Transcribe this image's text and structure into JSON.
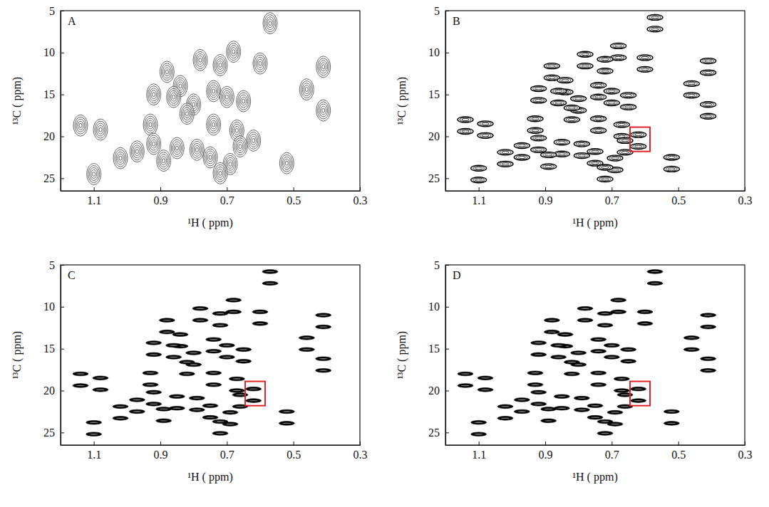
{
  "chart_data": [
    {
      "type": "scatter",
      "title": "A",
      "marker": "blob",
      "color": "#222222",
      "x_label": "¹H ( ppm)",
      "y_label": "¹³C ( ppm)",
      "xlim": [
        1.2,
        0.3
      ],
      "xticks": [
        1.1,
        0.9,
        0.7,
        0.5,
        0.3
      ],
      "ylim": [
        5,
        26.5
      ],
      "yticks": [
        5,
        10,
        15,
        20,
        25
      ],
      "x": [
        0.57,
        0.6,
        0.41,
        0.41,
        0.46,
        0.52,
        0.68,
        0.78,
        0.72,
        0.88,
        0.84,
        0.92,
        0.86,
        0.8,
        0.74,
        0.7,
        0.65,
        0.82,
        0.93,
        1.14,
        1.08,
        0.74,
        0.67,
        0.62,
        0.92,
        0.85,
        0.79,
        0.97,
        1.02,
        0.75,
        0.69,
        0.72,
        1.1,
        0.66,
        0.89
      ],
      "values": [
        6.5,
        11.3,
        11.7,
        16.9,
        14.4,
        23.2,
        9.9,
        10.9,
        11.5,
        12.3,
        14.0,
        15.0,
        15.3,
        16.2,
        14.6,
        15.3,
        15.8,
        17.3,
        18.6,
        18.7,
        19.2,
        18.6,
        19.3,
        20.5,
        20.9,
        21.4,
        21.6,
        21.8,
        22.6,
        22.5,
        23.3,
        24.4,
        24.5,
        21.2,
        22.9
      ]
    },
    {
      "type": "scatter",
      "title": "B",
      "marker": "contour",
      "color": "#000000",
      "x_label": "¹H ( ppm)",
      "y_label": "¹³C ( ppm)",
      "xlim": [
        1.2,
        0.3
      ],
      "xticks": [
        1.1,
        0.9,
        0.7,
        0.5,
        0.3
      ],
      "ylim": [
        5,
        26.5
      ],
      "yticks": [
        5,
        10,
        15,
        20,
        25
      ],
      "box": {
        "x": [
          0.645,
          0.585
        ],
        "y": [
          18.9,
          21.8
        ],
        "color": "#e0242a"
      },
      "x": [
        0.57,
        0.57,
        0.6,
        0.6,
        0.41,
        0.41,
        0.41,
        0.41,
        0.46,
        0.46,
        0.52,
        0.52,
        0.68,
        0.68,
        0.78,
        0.78,
        0.72,
        0.72,
        0.88,
        0.88,
        0.84,
        0.84,
        0.92,
        0.92,
        0.86,
        0.86,
        0.8,
        0.8,
        0.74,
        0.74,
        0.7,
        0.7,
        0.65,
        0.65,
        0.82,
        0.82,
        0.93,
        0.93,
        1.14,
        1.14,
        1.08,
        1.08,
        0.74,
        0.74,
        0.67,
        0.67,
        0.62,
        0.62,
        0.92,
        0.92,
        0.85,
        0.85,
        0.79,
        0.79,
        0.97,
        0.97,
        1.02,
        1.02,
        0.75,
        0.75,
        0.69,
        0.69,
        0.72,
        0.72,
        1.1,
        1.1,
        0.66,
        0.66,
        0.89,
        0.89
      ],
      "values": [
        5.8,
        7.2,
        10.6,
        12.0,
        11.0,
        12.4,
        16.2,
        17.6,
        13.7,
        15.1,
        22.5,
        23.9,
        9.2,
        10.6,
        10.2,
        11.6,
        10.8,
        12.2,
        11.6,
        13.0,
        13.3,
        14.7,
        14.3,
        15.7,
        14.6,
        16.0,
        15.5,
        16.9,
        13.9,
        15.3,
        14.6,
        16.0,
        15.1,
        16.5,
        16.6,
        18.0,
        17.9,
        19.3,
        18.0,
        19.4,
        18.5,
        19.9,
        17.9,
        19.3,
        18.6,
        20.0,
        19.8,
        21.2,
        20.2,
        21.6,
        20.7,
        22.1,
        20.9,
        22.3,
        21.1,
        22.5,
        21.9,
        23.3,
        21.8,
        23.2,
        22.6,
        24.0,
        23.7,
        25.1,
        23.8,
        25.2,
        20.5,
        21.9,
        22.2,
        23.6
      ]
    },
    {
      "type": "scatter",
      "title": "C",
      "marker": "ellipse",
      "color": "#000000",
      "x_label": "¹H ( ppm)",
      "y_label": "¹³C ( ppm)",
      "xlim": [
        1.2,
        0.3
      ],
      "xticks": [
        1.1,
        0.9,
        0.7,
        0.5,
        0.3
      ],
      "ylim": [
        5,
        26.5
      ],
      "yticks": [
        5,
        10,
        15,
        20,
        25
      ],
      "box": {
        "x": [
          0.645,
          0.585
        ],
        "y": [
          18.9,
          21.8
        ],
        "color": "#e0242a"
      },
      "x": [
        0.57,
        0.57,
        0.6,
        0.6,
        0.41,
        0.41,
        0.41,
        0.41,
        0.46,
        0.46,
        0.52,
        0.52,
        0.68,
        0.68,
        0.78,
        0.78,
        0.72,
        0.72,
        0.88,
        0.88,
        0.84,
        0.84,
        0.92,
        0.92,
        0.86,
        0.86,
        0.8,
        0.8,
        0.74,
        0.74,
        0.7,
        0.7,
        0.65,
        0.65,
        0.82,
        0.82,
        0.93,
        0.93,
        1.14,
        1.14,
        1.08,
        1.08,
        0.74,
        0.74,
        0.67,
        0.67,
        0.62,
        0.62,
        0.92,
        0.92,
        0.85,
        0.85,
        0.79,
        0.79,
        0.97,
        0.97,
        1.02,
        1.02,
        0.75,
        0.75,
        0.69,
        0.69,
        0.72,
        0.72,
        1.1,
        1.1,
        0.66,
        0.66,
        0.89,
        0.89
      ],
      "values": [
        5.8,
        7.2,
        10.6,
        12.0,
        11.0,
        12.4,
        16.2,
        17.6,
        13.7,
        15.1,
        22.5,
        23.9,
        9.2,
        10.6,
        10.2,
        11.6,
        10.8,
        12.2,
        11.6,
        13.0,
        13.3,
        14.7,
        14.3,
        15.7,
        14.6,
        16.0,
        15.5,
        16.9,
        13.9,
        15.3,
        14.6,
        16.0,
        15.1,
        16.5,
        16.6,
        18.0,
        17.9,
        19.3,
        18.0,
        19.4,
        18.5,
        19.9,
        17.9,
        19.3,
        18.6,
        20.0,
        19.8,
        21.2,
        20.2,
        21.6,
        20.7,
        22.1,
        20.9,
        22.3,
        21.1,
        22.5,
        21.9,
        23.3,
        21.8,
        23.2,
        22.6,
        24.0,
        23.7,
        25.1,
        23.8,
        25.2,
        20.5,
        21.9,
        22.2,
        23.6
      ]
    },
    {
      "type": "scatter",
      "title": "D",
      "marker": "ellipse",
      "color": "#000000",
      "x_label": "¹H ( ppm)",
      "y_label": "¹³C ( ppm)",
      "xlim": [
        1.2,
        0.3
      ],
      "xticks": [
        1.1,
        0.9,
        0.7,
        0.5,
        0.3
      ],
      "ylim": [
        5,
        26.5
      ],
      "yticks": [
        5,
        10,
        15,
        20,
        25
      ],
      "box": {
        "x": [
          0.645,
          0.585
        ],
        "y": [
          18.9,
          21.8
        ],
        "color": "#e0242a"
      },
      "x": [
        0.57,
        0.57,
        0.6,
        0.6,
        0.41,
        0.41,
        0.41,
        0.41,
        0.46,
        0.46,
        0.52,
        0.52,
        0.68,
        0.68,
        0.78,
        0.78,
        0.72,
        0.72,
        0.88,
        0.88,
        0.84,
        0.84,
        0.92,
        0.92,
        0.86,
        0.86,
        0.8,
        0.8,
        0.74,
        0.74,
        0.7,
        0.7,
        0.65,
        0.65,
        0.82,
        0.82,
        0.93,
        0.93,
        1.14,
        1.14,
        1.08,
        1.08,
        0.74,
        0.74,
        0.67,
        0.67,
        0.62,
        0.62,
        0.92,
        0.92,
        0.85,
        0.85,
        0.79,
        0.79,
        0.97,
        0.97,
        1.02,
        1.02,
        0.75,
        0.75,
        0.69,
        0.69,
        0.72,
        0.72,
        1.1,
        1.1,
        0.66,
        0.66,
        0.89,
        0.89
      ],
      "values": [
        5.8,
        7.2,
        10.6,
        12.0,
        11.0,
        12.4,
        16.2,
        17.6,
        13.7,
        15.1,
        22.5,
        23.9,
        9.2,
        10.6,
        10.2,
        11.6,
        10.8,
        12.2,
        11.6,
        13.0,
        13.3,
        14.7,
        14.3,
        15.7,
        14.6,
        16.0,
        15.5,
        16.9,
        13.9,
        15.3,
        14.6,
        16.0,
        15.1,
        16.5,
        16.6,
        18.0,
        17.9,
        19.3,
        18.0,
        19.4,
        18.5,
        19.9,
        17.9,
        19.3,
        18.6,
        20.0,
        19.8,
        21.2,
        20.2,
        21.6,
        20.7,
        22.1,
        20.9,
        22.3,
        21.1,
        22.5,
        21.9,
        23.3,
        21.8,
        23.2,
        22.6,
        24.0,
        23.7,
        25.1,
        23.8,
        25.2,
        20.5,
        21.9,
        22.2,
        23.6
      ]
    }
  ]
}
